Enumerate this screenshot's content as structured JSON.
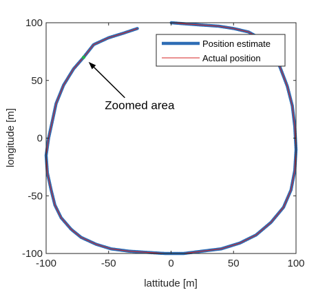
{
  "chart_data": {
    "type": "line",
    "xlabel": "lattitude [m]",
    "ylabel": "longitude [m]",
    "xlim": [
      -100,
      100
    ],
    "ylim": [
      -100,
      100
    ],
    "xticks": [
      -100,
      -50,
      0,
      50,
      100
    ],
    "yticks": [
      -100,
      -50,
      0,
      50,
      100
    ],
    "legend": {
      "location": "top-right"
    },
    "series": [
      {
        "name": "Position estimate",
        "color": "#2e6db5",
        "style": "thick",
        "x": [
          -27,
          -38,
          -50,
          -62,
          -70,
          -78,
          -86,
          -92,
          -95,
          -98,
          -100,
          -99,
          -96,
          -93,
          -88,
          -80,
          -72,
          -60,
          -48,
          -34,
          -20,
          -5,
          10,
          25,
          40,
          55,
          68,
          80,
          90,
          96,
          99,
          100,
          99,
          97,
          93,
          87,
          80,
          72,
          62,
          50,
          38,
          25,
          12,
          0
        ],
        "y": [
          95,
          91,
          87,
          81,
          70,
          60,
          46,
          30,
          15,
          0,
          -15,
          -30,
          -45,
          -58,
          -69,
          -79,
          -86,
          -92,
          -96,
          -98,
          -99,
          -100,
          -100,
          -98,
          -96,
          -91,
          -84,
          -73,
          -60,
          -45,
          -28,
          -10,
          10,
          28,
          45,
          62,
          76,
          86,
          92,
          95,
          97,
          98,
          99,
          100
        ]
      },
      {
        "name": "Actual position",
        "color": "#d42020",
        "style": "thin",
        "x": [
          -27,
          -38,
          -50,
          -62,
          -70,
          -78,
          -86,
          -92,
          -95,
          -98,
          -100,
          -99,
          -96,
          -93,
          -88,
          -80,
          -72,
          -60,
          -48,
          -34,
          -20,
          -5,
          10,
          25,
          40,
          55,
          68,
          80,
          90,
          96,
          99,
          100,
          99,
          97,
          93,
          87,
          80,
          72,
          62,
          50,
          38,
          25,
          12,
          0
        ],
        "y": [
          95,
          91,
          87,
          81,
          70,
          60,
          46,
          30,
          15,
          0,
          -15,
          -30,
          -45,
          -58,
          -69,
          -79,
          -86,
          -92,
          -96,
          -98,
          -99,
          -100,
          -100,
          -98,
          -96,
          -91,
          -84,
          -73,
          -60,
          -45,
          -28,
          -10,
          10,
          28,
          45,
          62,
          76,
          86,
          92,
          95,
          97,
          98,
          99,
          100
        ]
      }
    ],
    "highlight_point": {
      "x": -70,
      "y": 70,
      "color": "#22b14c"
    },
    "annotation": {
      "text": "Zoomed area",
      "text_x": -53,
      "text_y": 25,
      "arrow_from_x": -37,
      "arrow_from_y": 35,
      "arrow_to_x": -66,
      "arrow_to_y": 66
    }
  }
}
